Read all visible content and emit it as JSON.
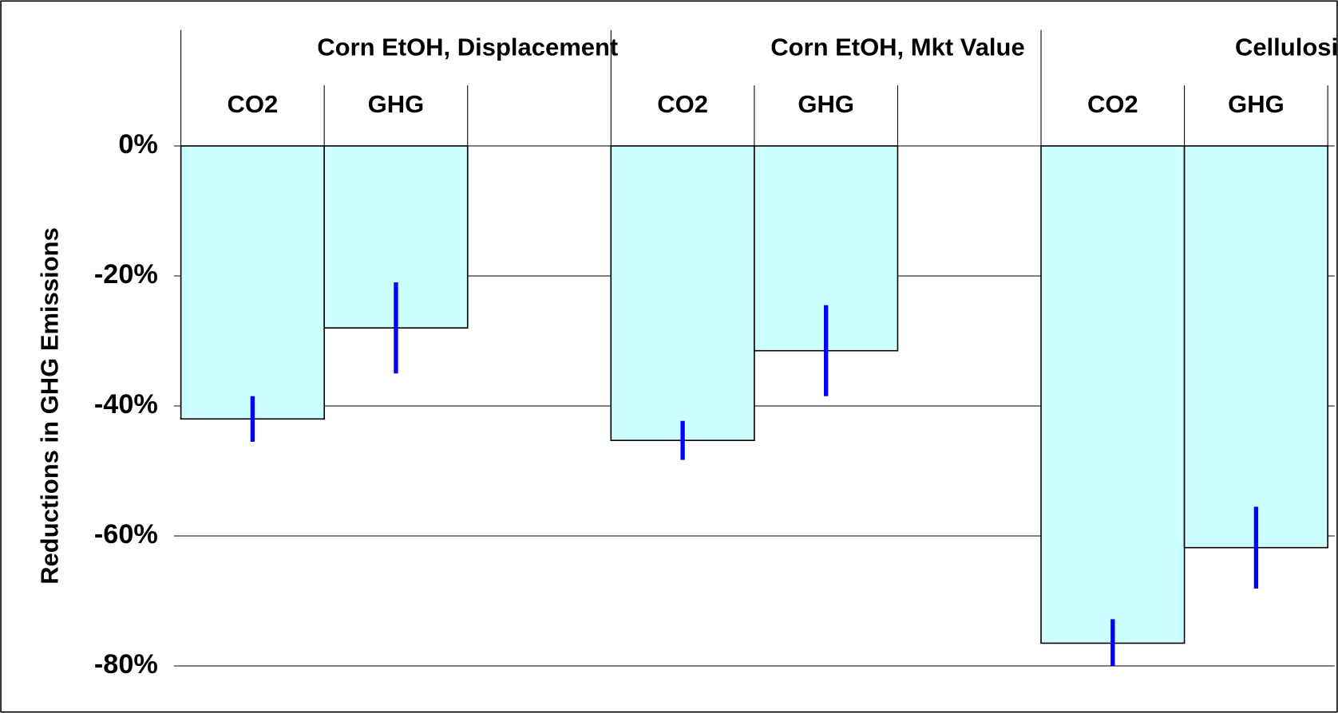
{
  "chart_data": {
    "type": "bar",
    "ylabel": "Reductions in GHG Emissions",
    "groups": [
      {
        "name": "Corn EtOH, Displacement",
        "categories": [
          "CO2",
          "GHG"
        ],
        "values": [
          -42,
          -28
        ],
        "errors": [
          3.5,
          7
        ]
      },
      {
        "name": "Corn EtOH, Mkt Value",
        "categories": [
          "CO2",
          "GHG"
        ],
        "values": [
          -45.3,
          -31.5
        ],
        "errors": [
          3,
          7
        ]
      },
      {
        "name": "Cellulosic EtOH",
        "categories": [
          "CO2",
          "GHG"
        ],
        "values": [
          -76.5,
          -61.8
        ],
        "errors": [
          3.7,
          6.3
        ]
      }
    ],
    "color": "#ccffff",
    "error_color": "#0000ff",
    "ylim": [
      -80,
      0
    ],
    "yticks": [
      {
        "value": 0,
        "label": "0%"
      },
      {
        "value": -20,
        "label": "-20%"
      },
      {
        "value": -40,
        "label": "-40%"
      },
      {
        "value": -60,
        "label": "-60%"
      },
      {
        "value": -80,
        "label": "-80%"
      }
    ],
    "grid": true
  }
}
